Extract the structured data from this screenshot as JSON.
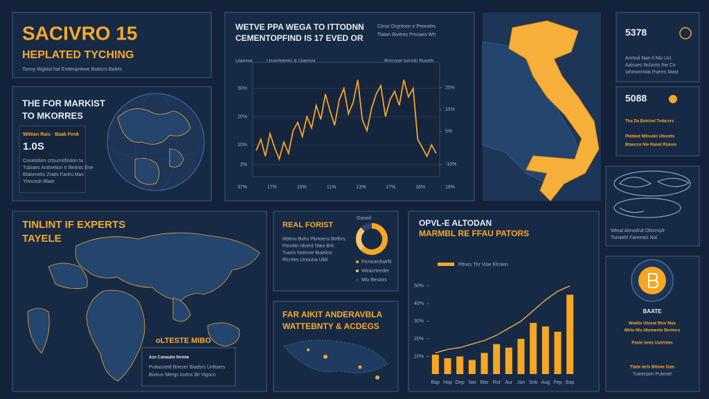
{
  "header": {
    "title": "SACIVRO 15",
    "subtitle": "HEPLATED TYCHING",
    "note": "Tormy-Wgatal hat Enttenpriewe Bsetcrs Balets"
  },
  "market_panel": {
    "title": "THE FOR MARKIST",
    "subtitle": "TO MKORRES",
    "stat_label": "Wittian Rais · Baak Fenk",
    "stat_value": "1.0S",
    "lines": [
      "Cosetotion crtsurnsfiotion ta",
      "Tubiaes Aottnetion tr Beitnts Ene",
      "Blakeneks Zraits Fanks Mas",
      "Ytrecesh Blaer"
    ]
  },
  "line_chart": {
    "type": "line",
    "title": "WETVE PPA WEGA TO ITTODNN",
    "subtitle": "CEMENTOPFIND IS 17 EVED OR",
    "note": [
      "Clnse Drgntoon ir Peonotrs",
      "Tiatan Bivitres Pmnaes Wh"
    ],
    "legend": [
      "Uiarmot",
      "Usserlotrets & Uiarmot",
      "Rmcone Iurrrdo Buvels"
    ],
    "x_labels": [
      "37%",
      "17%",
      "15%",
      "11%",
      "13%",
      "17%",
      "16%",
      "18%"
    ],
    "values": [
      8,
      12,
      6,
      14,
      9,
      5,
      11,
      7,
      15,
      18,
      13,
      20,
      16,
      24,
      19,
      28,
      22,
      17,
      26,
      30,
      21,
      25,
      33,
      19,
      15,
      23,
      28,
      31,
      20,
      26,
      29,
      24,
      33,
      27,
      30,
      12,
      9,
      6,
      10,
      7
    ],
    "color": "#f5a623",
    "ylim": [
      0,
      38
    ],
    "yticks": [
      {
        "value": 30,
        "label": "30%"
      },
      {
        "value": 20,
        "label": "20%"
      },
      {
        "value": 10,
        "label": "10%"
      },
      {
        "value": 3,
        "label": "3%"
      }
    ],
    "y2lim": [
      -14,
      35
    ],
    "y2ticks": [
      {
        "value": 25,
        "label": "25%"
      },
      {
        "value": 15,
        "label": "15%"
      },
      {
        "value": 5,
        "label": "5%"
      },
      {
        "value": -10,
        "label": "-10%"
      }
    ]
  },
  "stats": [
    {
      "value": "5378",
      "lines": [
        "Amhoil Nae Il Nlo Ucl",
        "Aalssec Nclonto Ihe Co",
        "Iahmonmtat Puerrs Mast"
      ]
    },
    {
      "value": "5088",
      "lines": [
        "Tha Da Botchel Tvtbcsrs",
        "Ptebied Nflnseln Ubnntts",
        "Btaocce Nle Raiod Rianes"
      ]
    }
  ],
  "device_panel": {
    "lines": [
      "Wtnal Abnodnd Obtresplr",
      "Tunaehl Fareeats Nal"
    ]
  },
  "coin_panel": {
    "title": "BAATE",
    "lines": [
      "Wieltls Uhreat Ifitre Mas",
      "Mirlo Nlo Iiltoments Bertmrs",
      "Paste Isnts Uutrinies",
      "Tlatle Ierls Bttiote Dals",
      "Tueeciam Pulenet"
    ]
  },
  "world_panel": {
    "title": "TINLINT IF EXPERTS",
    "subtitle": "TAYELE",
    "map_label": "oLTESTE MIBO",
    "box": [
      "Ass Canaulin Ihrinte",
      "Pultasneld Bneser Biadsrs Unltoers",
      "Bivirun Mergs Iuvtns Ibt Vigocn"
    ]
  },
  "donut_panel": {
    "title": "REAL FORIST",
    "chart_label": "Gwseil",
    "lines": [
      "Rbtmo Bvhs Pbrtoens Btrtbrs",
      "Pomiler Idvent Nteo Brit",
      "Tuoris Nstrsne Bulelins",
      "Rlcntes Ltnouna Ubtl"
    ],
    "donut": {
      "type": "pie",
      "values": [
        62,
        26,
        12
      ],
      "colors": [
        "#f5a623",
        "#f7c66b",
        "#2b4467"
      ],
      "labels": [
        "Flcmcenhstrfit",
        "Wiracrteeder",
        "Mlo Besiors"
      ]
    }
  },
  "region_panel": {
    "title": "FAR AIKIT ANDERAVBLA",
    "subtitle": "WATTEBNTY & ACDEGS"
  },
  "bar_chart": {
    "type": "bar",
    "title": "OPVL-E ALTODAN",
    "subtitle": "MARMBL RE FFAU PATORS",
    "legend": "Pltnes Thr Vioe Elrnten",
    "categories": [
      "Bap",
      "Hop",
      "Oep",
      "Nat",
      "Mar",
      "Rut",
      "Aur",
      "Jan",
      "Snb",
      "Aug",
      "Pep",
      "Bap"
    ],
    "values": [
      11,
      9,
      10,
      8,
      12,
      17,
      15,
      20,
      29,
      27,
      24,
      45
    ],
    "line_values": [
      12,
      14,
      15,
      17,
      19,
      22,
      26,
      30,
      36,
      42,
      47,
      50
    ],
    "color": "#f5a623",
    "ylim": [
      0,
      55
    ],
    "yticks": [
      {
        "value": 50,
        "label": "50%"
      },
      {
        "value": 40,
        "label": "40%"
      },
      {
        "value": 30,
        "label": "30%"
      },
      {
        "value": 20,
        "label": "20%"
      },
      {
        "value": 10,
        "label": "10%"
      }
    ]
  }
}
